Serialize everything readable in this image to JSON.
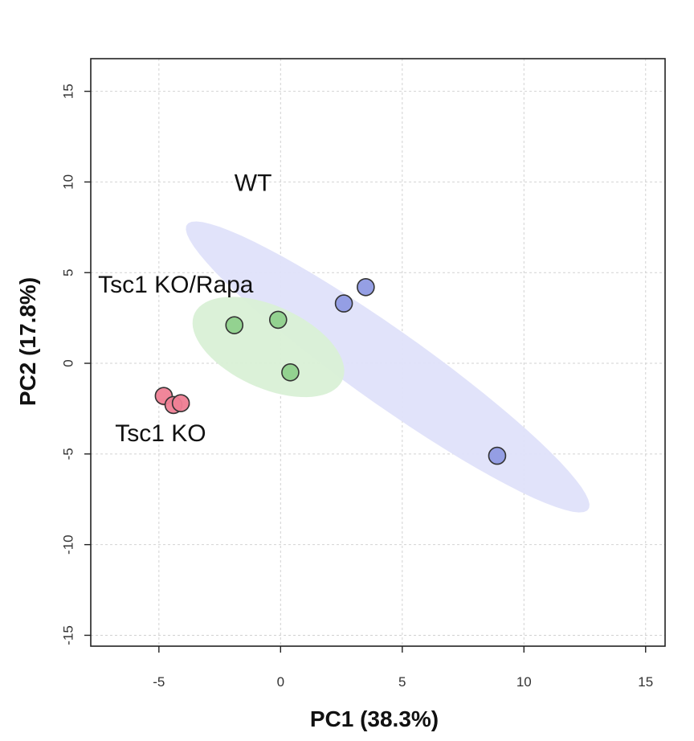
{
  "chart_data": {
    "type": "scatter",
    "title": "",
    "xlabel": "PC1 (38.3%)",
    "ylabel": "PC2 (17.8%)",
    "xlim": [
      -7.8,
      15.8
    ],
    "ylim": [
      -15.6,
      16.8
    ],
    "xticks": [
      -5,
      0,
      5,
      10,
      15
    ],
    "yticks": [
      -15,
      -10,
      -5,
      0,
      5,
      10,
      15
    ],
    "x_tick_labels": [
      "-5",
      "0",
      "5",
      "10",
      "15"
    ],
    "y_tick_labels": [
      "-15",
      "-10",
      "-5",
      "0",
      "5",
      "10",
      "15"
    ],
    "grid": true,
    "series": [
      {
        "name": "WT",
        "color": "#8f9ae3",
        "ellipse_color": "#dfe2fa",
        "x": [
          2.6,
          3.5,
          8.9
        ],
        "y": [
          3.3,
          4.2,
          -5.1
        ],
        "ellipse": {
          "cx": 4.4,
          "cy": -0.2,
          "rx": 11.4,
          "ry": 1.8,
          "angle_deg": 44
        }
      },
      {
        "name": "Tsc1 KO/Rapa",
        "color": "#8fd08c",
        "ellipse_color": "#d9f0d6",
        "x": [
          -1.9,
          -0.1,
          0.4
        ],
        "y": [
          2.1,
          2.4,
          -0.5
        ],
        "ellipse": {
          "cx": -0.5,
          "cy": 0.9,
          "rx": 3.6,
          "ry": 2.1,
          "angle_deg": 38
        }
      },
      {
        "name": "Tsc1 KO",
        "color": "#ef7f95",
        "ellipse_color": "#f6b8c4",
        "x": [
          -4.8,
          -4.4,
          -4.1
        ],
        "y": [
          -1.8,
          -2.3,
          -2.2
        ],
        "ellipse": {
          "cx": -4.4,
          "cy": -2.2,
          "rx": 0.7,
          "ry": 0.25,
          "angle_deg": 10
        }
      }
    ],
    "annotations": [
      {
        "text": "WT",
        "x": -1.9,
        "y": 9.5
      },
      {
        "text": "Tsc1 KO/Rapa",
        "x": -7.5,
        "y": 3.9
      },
      {
        "text": "Tsc1 KO",
        "x": -6.8,
        "y": -4.3
      }
    ]
  }
}
